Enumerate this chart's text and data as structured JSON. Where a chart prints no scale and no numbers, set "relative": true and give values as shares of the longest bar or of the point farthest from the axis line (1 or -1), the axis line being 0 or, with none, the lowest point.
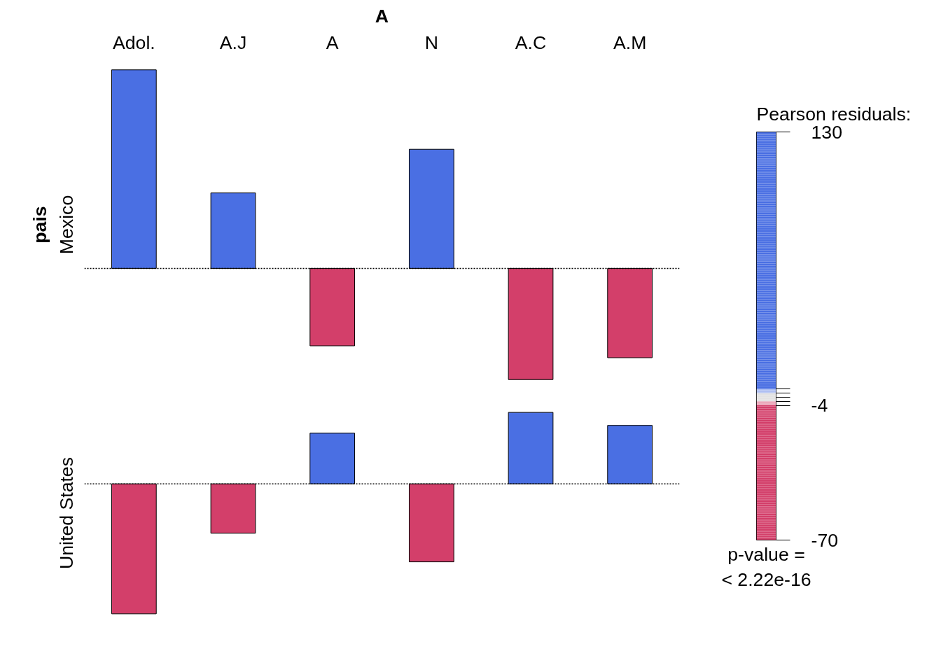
{
  "chart_data": [
    {
      "type": "bar",
      "title": "A",
      "ylabel": "Mexico",
      "relative": true,
      "tick_labels": "x",
      "grid": false,
      "categories": [
        "Adol.",
        "A.J",
        "A",
        "N",
        "A.C",
        "A.M"
      ],
      "values": [
        1,
        0.38,
        -0.39,
        0.6,
        -0.56,
        -0.45
      ],
      "colors": [
        "#4a6fe3",
        "#4a6fe3",
        "#d33f6a",
        "#4a6fe3",
        "#d33f6a",
        "#d33f6a"
      ],
      "ref_lines": [
        {
          "axis": "y",
          "value": 0,
          "line_style": "dotted",
          "color": "#000000"
        }
      ],
      "annotations": [
        "pais",
        "p-value =\n< 2.22e-16"
      ],
      "clabel": "Pearson residuals:",
      "clim": [
        -70,
        130
      ],
      "cticks": [
        130,
        {
          "value": 4,
          "label": null
        },
        {
          "value": 2,
          "label": null
        },
        {
          "value": 0,
          "label": null
        },
        {
          "value": -2,
          "label": null
        },
        -4,
        -70
      ]
    },
    {
      "type": "bar",
      "ylabel": "United States",
      "relative": true,
      "tick_labels": false,
      "grid": false,
      "categories": [
        null,
        null,
        null,
        null,
        null,
        null
      ],
      "values": [
        -1,
        -0.38,
        0.39,
        -0.6,
        0.55,
        0.45
      ],
      "colors": [
        "#d33f6a",
        "#d33f6a",
        "#4a6fe3",
        "#d33f6a",
        "#4a6fe3",
        "#4a6fe3"
      ],
      "ref_lines": [
        {
          "axis": "y",
          "value": 0,
          "line_style": "dotted",
          "color": "#000000"
        }
      ]
    }
  ]
}
